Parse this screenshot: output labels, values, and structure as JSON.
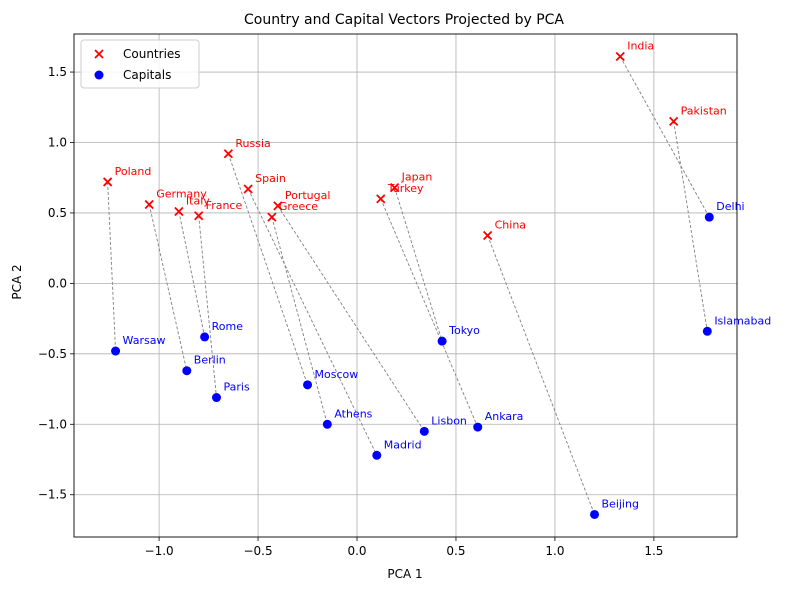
{
  "chart_data": {
    "type": "scatter",
    "title": "Country and Capital Vectors Projected by PCA",
    "xlabel": "PCA 1",
    "ylabel": "PCA 2",
    "xlim": [
      -1.43,
      1.92
    ],
    "ylim": [
      -1.8,
      1.77
    ],
    "xticks": [
      {
        "value": -1.0,
        "label": "−1.0"
      },
      {
        "value": -0.5,
        "label": "−0.5"
      },
      {
        "value": 0.0,
        "label": "0.0"
      },
      {
        "value": 0.5,
        "label": "0.5"
      },
      {
        "value": 1.0,
        "label": "1.0"
      },
      {
        "value": 1.5,
        "label": "1.5"
      }
    ],
    "yticks": [
      {
        "value": -1.5,
        "label": "−1.5"
      },
      {
        "value": -1.0,
        "label": "−1.0"
      },
      {
        "value": -0.5,
        "label": "−0.5"
      },
      {
        "value": 0.0,
        "label": "0.0"
      },
      {
        "value": 0.5,
        "label": "0.5"
      },
      {
        "value": 1.0,
        "label": "1.0"
      },
      {
        "value": 1.5,
        "label": "1.5"
      }
    ],
    "grid": true,
    "legend_position": "top-left",
    "series": [
      {
        "name": "Countries",
        "marker": "x",
        "color": "#ff0000",
        "points": [
          {
            "label": "India",
            "x": 1.33,
            "y": 1.61
          },
          {
            "label": "Pakistan",
            "x": 1.6,
            "y": 1.15
          },
          {
            "label": "Russia",
            "x": -0.65,
            "y": 0.92
          },
          {
            "label": "Poland",
            "x": -1.26,
            "y": 0.72
          },
          {
            "label": "Spain",
            "x": -0.55,
            "y": 0.67
          },
          {
            "label": "Japan",
            "x": 0.19,
            "y": 0.68
          },
          {
            "label": "Turkey",
            "x": 0.12,
            "y": 0.6
          },
          {
            "label": "Portugal",
            "x": -0.4,
            "y": 0.55
          },
          {
            "label": "Germany",
            "x": -1.05,
            "y": 0.56
          },
          {
            "label": "Italy",
            "x": -0.9,
            "y": 0.51
          },
          {
            "label": "France",
            "x": -0.8,
            "y": 0.48
          },
          {
            "label": "Greece",
            "x": -0.43,
            "y": 0.47
          },
          {
            "label": "China",
            "x": 0.66,
            "y": 0.34
          }
        ]
      },
      {
        "name": "Capitals",
        "marker": "o",
        "color": "#0000ff",
        "points": [
          {
            "label": "Delhi",
            "x": 1.78,
            "y": 0.47
          },
          {
            "label": "Islamabad",
            "x": 1.77,
            "y": -0.34
          },
          {
            "label": "Tokyo",
            "x": 0.43,
            "y": -0.41
          },
          {
            "label": "Rome",
            "x": -0.77,
            "y": -0.38
          },
          {
            "label": "Warsaw",
            "x": -1.22,
            "y": -0.48
          },
          {
            "label": "Berlin",
            "x": -0.86,
            "y": -0.62
          },
          {
            "label": "Moscow",
            "x": -0.25,
            "y": -0.72
          },
          {
            "label": "Paris",
            "x": -0.71,
            "y": -0.81
          },
          {
            "label": "Athens",
            "x": -0.15,
            "y": -1.0
          },
          {
            "label": "Lisbon",
            "x": 0.34,
            "y": -1.05
          },
          {
            "label": "Ankara",
            "x": 0.61,
            "y": -1.02
          },
          {
            "label": "Madrid",
            "x": 0.1,
            "y": -1.22
          },
          {
            "label": "Beijing",
            "x": 1.2,
            "y": -1.64
          }
        ]
      }
    ],
    "links": [
      [
        "India",
        "Delhi"
      ],
      [
        "Pakistan",
        "Islamabad"
      ],
      [
        "Russia",
        "Moscow"
      ],
      [
        "Poland",
        "Warsaw"
      ],
      [
        "Spain",
        "Madrid"
      ],
      [
        "Japan",
        "Tokyo"
      ],
      [
        "Turkey",
        "Ankara"
      ],
      [
        "Portugal",
        "Lisbon"
      ],
      [
        "Germany",
        "Berlin"
      ],
      [
        "Italy",
        "Rome"
      ],
      [
        "France",
        "Paris"
      ],
      [
        "Greece",
        "Athens"
      ],
      [
        "China",
        "Beijing"
      ]
    ]
  }
}
